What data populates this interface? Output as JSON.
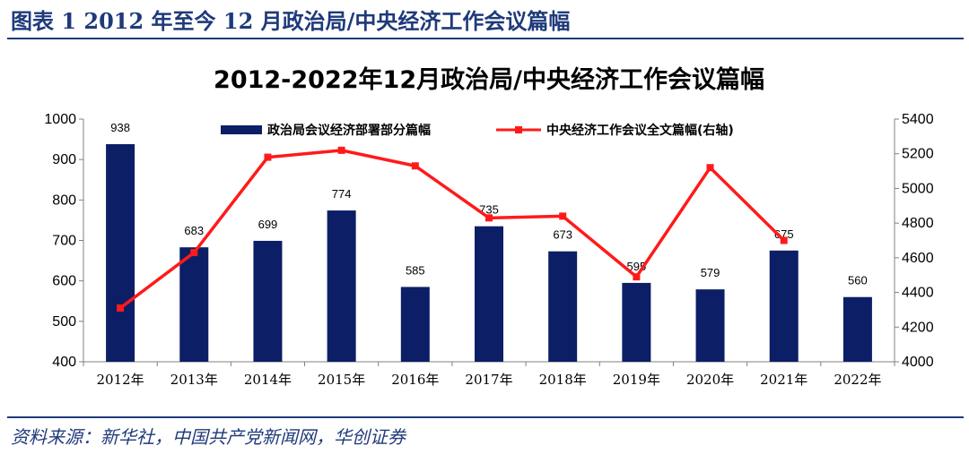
{
  "header": {
    "figure_title": "图表 1   2012 年至今 12 月政治局/中央经济工作会议篇幅"
  },
  "footer": {
    "source": "资料来源：新华社，中国共产党新闻网，华创证券"
  },
  "chart_data": {
    "type": "bar",
    "title": "2012-2022年12月政治局/中央经济工作会议篇幅",
    "categories": [
      "2012年",
      "2013年",
      "2014年",
      "2015年",
      "2016年",
      "2017年",
      "2018年",
      "2019年",
      "2020年",
      "2021年",
      "2022年"
    ],
    "ylim": [
      400,
      1000
    ],
    "y_ticks": [
      400,
      500,
      600,
      700,
      800,
      900,
      1000
    ],
    "y2lim": [
      4000,
      5400
    ],
    "y2_ticks": [
      4000,
      4200,
      4400,
      4600,
      4800,
      5000,
      5200,
      5400
    ],
    "legend_position": "top",
    "series": [
      {
        "name": "政治局会议经济部署部分篇幅",
        "type": "bar",
        "axis": "left",
        "color": "#0c1e66",
        "values": [
          938,
          683,
          699,
          774,
          585,
          735,
          673,
          595,
          579,
          675,
          560
        ],
        "labels": [
          "938",
          "683",
          "699",
          "774",
          "585",
          "735",
          "673",
          "595",
          "579",
          "675",
          "560"
        ]
      },
      {
        "name": "中央经济工作会议全文篇幅(右轴)",
        "type": "line",
        "axis": "right",
        "color": "#ff1a1a",
        "values": [
          4310,
          4630,
          5180,
          5220,
          5130,
          4830,
          4840,
          4490,
          5120,
          4700,
          null
        ]
      }
    ]
  }
}
